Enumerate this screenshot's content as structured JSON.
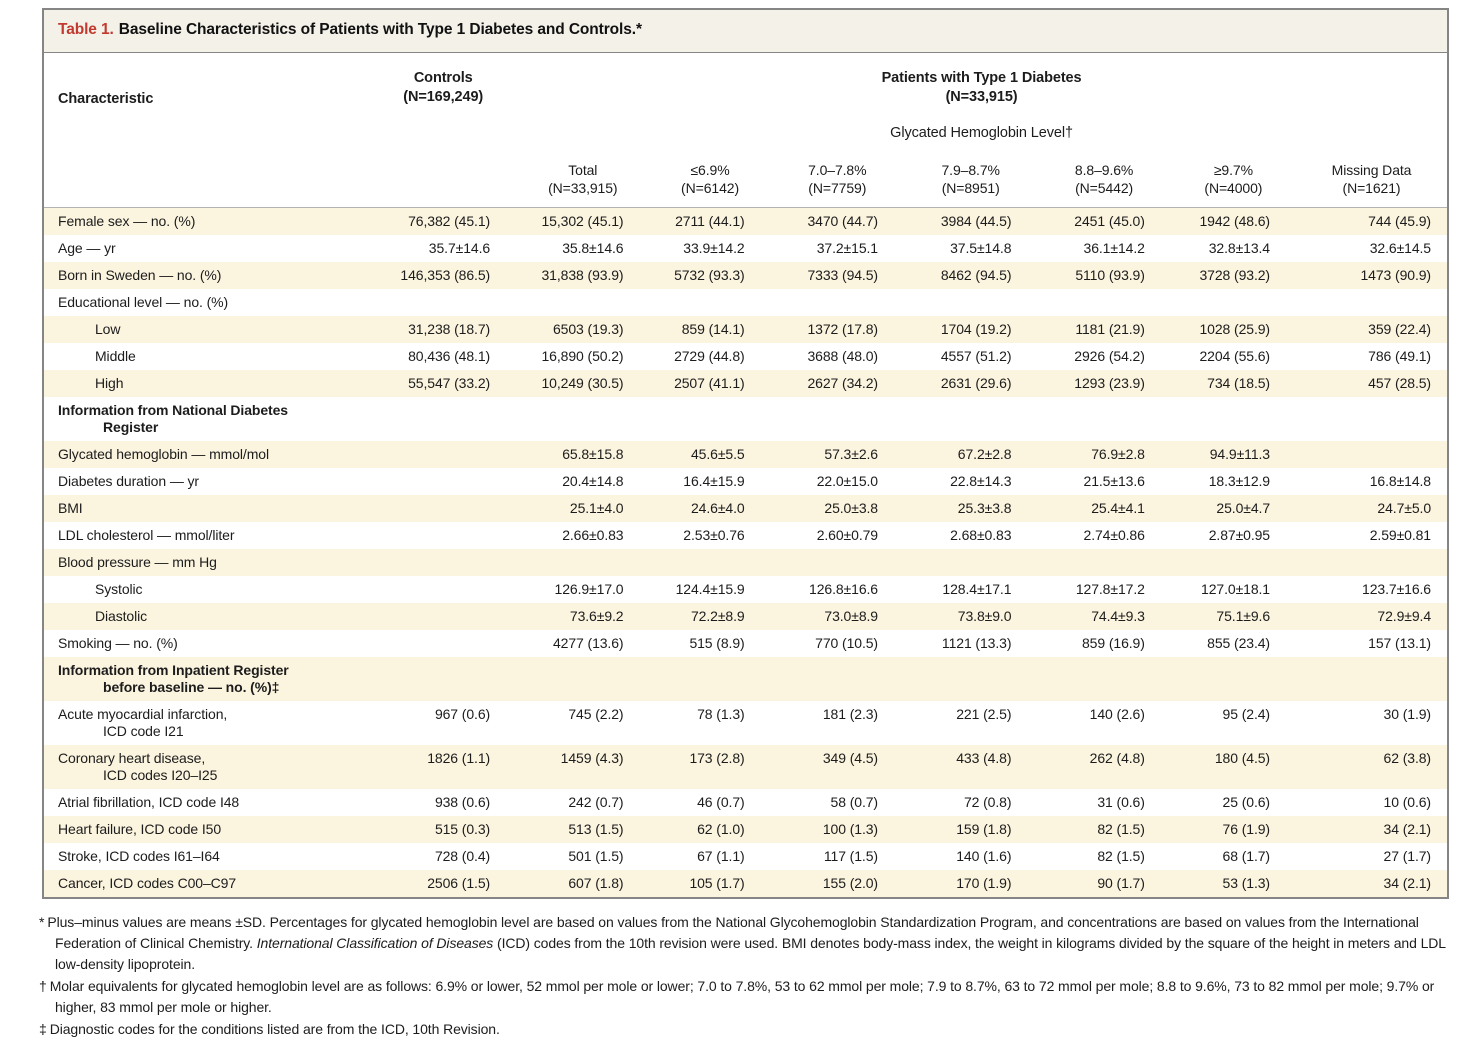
{
  "colors": {
    "accent_red": "#c23a2f",
    "row_stripe": "#fbf4df",
    "title_bar_bg": "#f4f1e9",
    "outer_border": "#858585",
    "header_rule": "#b3b3b3",
    "text": "#1c1c1c"
  },
  "title": {
    "label": "Table 1.",
    "text": "Baseline Characteristics of Patients with Type 1 Diabetes and Controls.*"
  },
  "header": {
    "characteristic": "Characteristic",
    "controls": {
      "label": "Controls",
      "n": "(N=169,249)"
    },
    "patients": {
      "label": "Patients with Type 1 Diabetes",
      "n": "(N=33,915)"
    },
    "ghb_level": "Glycated Hemoglobin Level†",
    "columns": [
      {
        "label": "Total",
        "n": "(N=33,915)"
      },
      {
        "label": "≤6.9%",
        "n": "(N=6142)"
      },
      {
        "label": "7.0–7.8%",
        "n": "(N=7759)"
      },
      {
        "label": "7.9–8.7%",
        "n": "(N=8951)"
      },
      {
        "label": "8.8–9.6%",
        "n": "(N=5442)"
      },
      {
        "label": "≥9.7%",
        "n": "(N=4000)"
      },
      {
        "label": "Missing Data",
        "n": "(N=1621)"
      }
    ]
  },
  "rows": [
    {
      "label": "Female sex — no. (%)",
      "indent": 0,
      "bold": false,
      "values": [
        "76,382 (45.1)",
        "15,302 (45.1)",
        "2711 (44.1)",
        "3470 (44.7)",
        "3984 (44.5)",
        "2451 (45.0)",
        "1942 (48.6)",
        "744 (45.9)"
      ]
    },
    {
      "label": "Age — yr",
      "indent": 0,
      "bold": false,
      "values": [
        "35.7±14.6",
        "35.8±14.6",
        "33.9±14.2",
        "37.2±15.1",
        "37.5±14.8",
        "36.1±14.2",
        "32.8±13.4",
        "32.6±14.5"
      ]
    },
    {
      "label": "Born in Sweden — no. (%)",
      "indent": 0,
      "bold": false,
      "values": [
        "146,353 (86.5)",
        "31,838 (93.9)",
        "5732 (93.3)",
        "7333 (94.5)",
        "8462 (94.5)",
        "5110 (93.9)",
        "3728 (93.2)",
        "1473 (90.9)"
      ]
    },
    {
      "label": "Educational level — no. (%)",
      "indent": 0,
      "bold": false,
      "values": [
        "",
        "",
        "",
        "",
        "",
        "",
        "",
        ""
      ]
    },
    {
      "label": "Low",
      "indent": 1,
      "bold": false,
      "values": [
        "31,238 (18.7)",
        "6503 (19.3)",
        "859 (14.1)",
        "1372 (17.8)",
        "1704 (19.2)",
        "1181 (21.9)",
        "1028 (25.9)",
        "359 (22.4)"
      ]
    },
    {
      "label": "Middle",
      "indent": 1,
      "bold": false,
      "values": [
        "80,436 (48.1)",
        "16,890 (50.2)",
        "2729 (44.8)",
        "3688 (48.0)",
        "4557 (51.2)",
        "2926 (54.2)",
        "2204 (55.6)",
        "786 (49.1)"
      ]
    },
    {
      "label": "High",
      "indent": 1,
      "bold": false,
      "values": [
        "55,547 (33.2)",
        "10,249 (30.5)",
        "2507 (41.1)",
        "2627 (34.2)",
        "2631 (29.6)",
        "1293 (23.9)",
        "734 (18.5)",
        "457 (28.5)"
      ]
    },
    {
      "label": "Information from National Diabetes",
      "label2": "Register",
      "indent": 0,
      "bold": true,
      "values": [
        "",
        "",
        "",
        "",
        "",
        "",
        "",
        ""
      ]
    },
    {
      "label": "Glycated hemoglobin — mmol/mol",
      "indent": 0,
      "bold": false,
      "values": [
        "",
        "65.8±15.8",
        "45.6±5.5",
        "57.3±2.6",
        "67.2±2.8",
        "76.9±2.8",
        "94.9±11.3",
        ""
      ]
    },
    {
      "label": "Diabetes duration — yr",
      "indent": 0,
      "bold": false,
      "values": [
        "",
        "20.4±14.8",
        "16.4±15.9",
        "22.0±15.0",
        "22.8±14.3",
        "21.5±13.6",
        "18.3±12.9",
        "16.8±14.8"
      ]
    },
    {
      "label": "BMI",
      "indent": 0,
      "bold": false,
      "values": [
        "",
        "25.1±4.0",
        "24.6±4.0",
        "25.0±3.8",
        "25.3±3.8",
        "25.4±4.1",
        "25.0±4.7",
        "24.7±5.0"
      ]
    },
    {
      "label": "LDL cholesterol — mmol/liter",
      "indent": 0,
      "bold": false,
      "values": [
        "",
        "2.66±0.83",
        "2.53±0.76",
        "2.60±0.79",
        "2.68±0.83",
        "2.74±0.86",
        "2.87±0.95",
        "2.59±0.81"
      ]
    },
    {
      "label": "Blood pressure — mm Hg",
      "indent": 0,
      "bold": false,
      "values": [
        "",
        "",
        "",
        "",
        "",
        "",
        "",
        ""
      ]
    },
    {
      "label": "Systolic",
      "indent": 1,
      "bold": false,
      "values": [
        "",
        "126.9±17.0",
        "124.4±15.9",
        "126.8±16.6",
        "128.4±17.1",
        "127.8±17.2",
        "127.0±18.1",
        "123.7±16.6"
      ]
    },
    {
      "label": "Diastolic",
      "indent": 1,
      "bold": false,
      "values": [
        "",
        "73.6±9.2",
        "72.2±8.9",
        "73.0±8.9",
        "73.8±9.0",
        "74.4±9.3",
        "75.1±9.6",
        "72.9±9.4"
      ]
    },
    {
      "label": "Smoking — no. (%)",
      "indent": 0,
      "bold": false,
      "values": [
        "",
        "4277 (13.6)",
        "515 (8.9)",
        "770 (10.5)",
        "1121 (13.3)",
        "859 (16.9)",
        "855 (23.4)",
        "157 (13.1)"
      ]
    },
    {
      "label": "Information from Inpatient Register",
      "label2": "before baseline — no. (%)‡",
      "indent": 0,
      "bold": true,
      "values": [
        "",
        "",
        "",
        "",
        "",
        "",
        "",
        ""
      ]
    },
    {
      "label": "Acute myocardial infarction,",
      "label2": "ICD code I21",
      "indent": 0,
      "bold": false,
      "values": [
        "967 (0.6)",
        "745 (2.2)",
        "78 (1.3)",
        "181 (2.3)",
        "221 (2.5)",
        "140 (2.6)",
        "95 (2.4)",
        "30 (1.9)"
      ]
    },
    {
      "label": "Coronary heart disease,",
      "label2": "ICD codes I20–I25",
      "indent": 0,
      "bold": false,
      "values": [
        "1826 (1.1)",
        "1459 (4.3)",
        "173 (2.8)",
        "349 (4.5)",
        "433 (4.8)",
        "262 (4.8)",
        "180 (4.5)",
        "62 (3.8)"
      ]
    },
    {
      "label": "Atrial fibrillation, ICD code I48",
      "indent": 0,
      "bold": false,
      "values": [
        "938 (0.6)",
        "242 (0.7)",
        "46 (0.7)",
        "58 (0.7)",
        "72 (0.8)",
        "31 (0.6)",
        "25 (0.6)",
        "10 (0.6)"
      ]
    },
    {
      "label": "Heart failure, ICD code I50",
      "indent": 0,
      "bold": false,
      "values": [
        "515 (0.3)",
        "513 (1.5)",
        "62 (1.0)",
        "100 (1.3)",
        "159 (1.8)",
        "82 (1.5)",
        "76 (1.9)",
        "34 (2.1)"
      ]
    },
    {
      "label": "Stroke, ICD codes I61–I64",
      "indent": 0,
      "bold": false,
      "values": [
        "728 (0.4)",
        "501 (1.5)",
        "67 (1.1)",
        "117 (1.5)",
        "140 (1.6)",
        "82 (1.5)",
        "68 (1.7)",
        "27 (1.7)"
      ]
    },
    {
      "label": "Cancer, ICD codes C00–C97",
      "indent": 0,
      "bold": false,
      "values": [
        "2506 (1.5)",
        "607 (1.8)",
        "105 (1.7)",
        "155 (2.0)",
        "170 (1.9)",
        "90 (1.7)",
        "53 (1.3)",
        "34 (2.1)"
      ]
    }
  ],
  "footnotes": {
    "star": {
      "marker": "*",
      "text_pre": "Plus–minus values are means ±SD. Percentages for glycated hemoglobin level are based on values from the National Glycohemoglobin Standardization Program, and concentrations are based on values from the International Federation of Clinical Chemistry. ",
      "text_italic": "International Classification of Diseases",
      "text_post": " (ICD) codes from the 10th revision were used. BMI denotes body-mass index, the weight in kilograms divided by the square of the height in meters and LDL low-density lipoprotein."
    },
    "dagger": {
      "marker": "†",
      "text": "Molar equivalents for glycated hemoglobin level are as follows: 6.9% or lower, 52 mmol per mole or lower; 7.0 to 7.8%, 53 to 62 mmol per mole; 7.9 to 8.7%, 63 to 72 mmol per mole; 8.8 to 9.6%, 73 to 82 mmol per mole; 9.7% or higher, 83 mmol per mole or higher."
    },
    "ddagger": {
      "marker": "‡",
      "text": "Diagnostic codes for the conditions listed are from the ICD, 10th Revision."
    }
  }
}
